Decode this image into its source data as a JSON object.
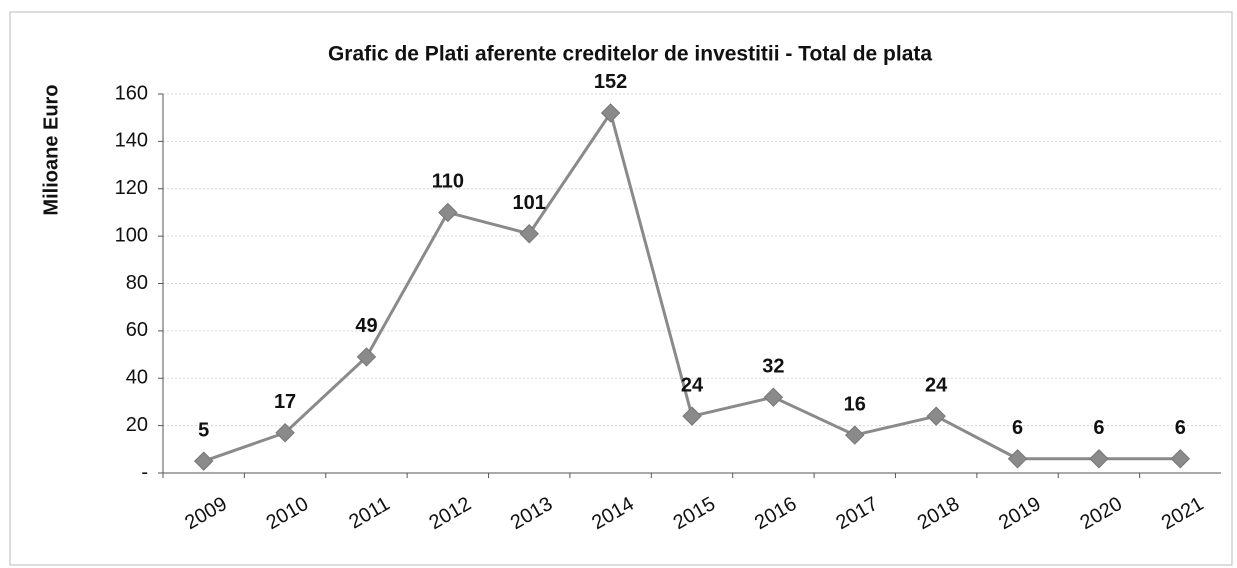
{
  "chart_data": {
    "type": "line",
    "title": "Grafic de Plati  aferente creditelor de investitii - Total de plata",
    "y_label": "Milioane Euro",
    "categories": [
      "2009",
      "2010",
      "2011",
      "2012",
      "2013",
      "2014",
      "2015",
      "2016",
      "2017",
      "2018",
      "2019",
      "2020",
      "2021"
    ],
    "series": [
      {
        "name": "Total de plata",
        "color": "#8a8a8a",
        "values": [
          5,
          17,
          49,
          110,
          101,
          152,
          24,
          32,
          16,
          24,
          6,
          6,
          6
        ]
      }
    ],
    "ylim": [
      0,
      160
    ],
    "yticks": [
      {
        "value": 0,
        "label": "-"
      },
      20,
      40,
      60,
      80,
      100,
      120,
      140,
      160
    ],
    "grid": true
  }
}
